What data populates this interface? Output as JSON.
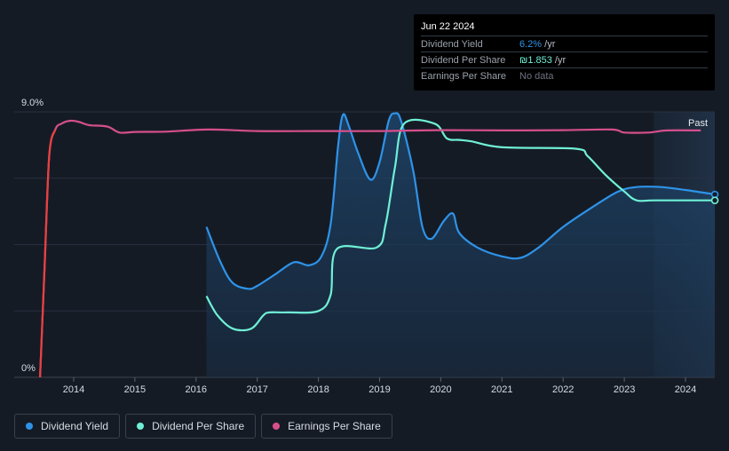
{
  "tooltip": {
    "date": "Jun 22 2024",
    "rows": [
      {
        "label": "Dividend Yield",
        "value": "6.2%",
        "unit": " /yr"
      },
      {
        "label": "Dividend Per Share",
        "value": "₪1.853",
        "unit": " /yr"
      },
      {
        "label": "Earnings Per Share",
        "value": "No data",
        "unit": ""
      }
    ]
  },
  "legend": [
    {
      "label": "Dividend Yield",
      "color": "#2e93e8"
    },
    {
      "label": "Dividend Per Share",
      "color": "#6ff0d6"
    },
    {
      "label": "Earnings Per Share",
      "color": "#d64f8c"
    }
  ],
  "chart_data": {
    "type": "line",
    "past_label": "Past",
    "y_tick_labels": [
      "9.0%",
      "0%"
    ],
    "x_ticks": [
      "2014",
      "2015",
      "2016",
      "2017",
      "2018",
      "2019",
      "2020",
      "2021",
      "2022",
      "2023",
      "2024"
    ],
    "xlim": [
      2013.0,
      2024.48
    ],
    "ylim": [
      0,
      9.0
    ],
    "forecast_start": 2023.48,
    "grid": true,
    "series": [
      {
        "name": "Dividend Yield",
        "color": "#2e93e8",
        "filled": true,
        "points": [
          [
            2016.17,
            5.1
          ],
          [
            2016.4,
            3.9
          ],
          [
            2016.6,
            3.2
          ],
          [
            2016.85,
            3.0
          ],
          [
            2017.0,
            3.1
          ],
          [
            2017.3,
            3.5
          ],
          [
            2017.6,
            3.9
          ],
          [
            2017.85,
            3.8
          ],
          [
            2018.05,
            4.1
          ],
          [
            2018.2,
            5.2
          ],
          [
            2018.32,
            7.8
          ],
          [
            2018.4,
            8.9
          ],
          [
            2018.5,
            8.5
          ],
          [
            2018.65,
            7.6
          ],
          [
            2018.85,
            6.7
          ],
          [
            2019.0,
            7.3
          ],
          [
            2019.15,
            8.7
          ],
          [
            2019.25,
            8.95
          ],
          [
            2019.35,
            8.7
          ],
          [
            2019.55,
            7.0
          ],
          [
            2019.7,
            5.1
          ],
          [
            2019.85,
            4.7
          ],
          [
            2020.05,
            5.3
          ],
          [
            2020.2,
            5.55
          ],
          [
            2020.3,
            4.9
          ],
          [
            2020.6,
            4.4
          ],
          [
            2021.0,
            4.1
          ],
          [
            2021.3,
            4.05
          ],
          [
            2021.6,
            4.4
          ],
          [
            2022.0,
            5.1
          ],
          [
            2022.5,
            5.8
          ],
          [
            2022.9,
            6.3
          ],
          [
            2023.2,
            6.45
          ],
          [
            2023.6,
            6.45
          ],
          [
            2024.0,
            6.35
          ],
          [
            2024.48,
            6.2
          ]
        ]
      },
      {
        "name": "Dividend Per Share",
        "color": "#6ff0d6",
        "filled": false,
        "points": [
          [
            2016.17,
            2.75
          ],
          [
            2016.35,
            2.1
          ],
          [
            2016.6,
            1.65
          ],
          [
            2016.9,
            1.65
          ],
          [
            2017.1,
            2.1
          ],
          [
            2017.2,
            2.2
          ],
          [
            2017.5,
            2.2
          ],
          [
            2018.0,
            2.25
          ],
          [
            2018.2,
            2.8
          ],
          [
            2018.3,
            4.35
          ],
          [
            2018.95,
            4.4
          ],
          [
            2019.1,
            5.2
          ],
          [
            2019.25,
            7.1
          ],
          [
            2019.4,
            8.6
          ],
          [
            2019.9,
            8.6
          ],
          [
            2020.1,
            8.1
          ],
          [
            2020.3,
            8.05
          ],
          [
            2020.5,
            8.0
          ],
          [
            2021.0,
            7.8
          ],
          [
            2022.2,
            7.75
          ],
          [
            2022.4,
            7.5
          ],
          [
            2022.7,
            6.85
          ],
          [
            2023.0,
            6.3
          ],
          [
            2023.2,
            6.0
          ],
          [
            2023.5,
            6.0
          ],
          [
            2024.48,
            6.0
          ]
        ]
      },
      {
        "name": "Earnings Per Share",
        "color": "#d64f8c",
        "filled": false,
        "points": [
          [
            2013.45,
            0
          ],
          [
            2013.52,
            3.5
          ],
          [
            2013.6,
            7.5
          ],
          [
            2013.7,
            8.4
          ],
          [
            2013.8,
            8.6
          ],
          [
            2013.95,
            8.7
          ],
          [
            2014.1,
            8.65
          ],
          [
            2014.25,
            8.55
          ],
          [
            2014.55,
            8.5
          ],
          [
            2014.75,
            8.3
          ],
          [
            2015.0,
            8.32
          ],
          [
            2015.5,
            8.33
          ],
          [
            2016.2,
            8.4
          ],
          [
            2017.0,
            8.35
          ],
          [
            2018.0,
            8.35
          ],
          [
            2019.0,
            8.35
          ],
          [
            2020.0,
            8.38
          ],
          [
            2021.0,
            8.37
          ],
          [
            2022.0,
            8.38
          ],
          [
            2022.8,
            8.4
          ],
          [
            2023.0,
            8.3
          ],
          [
            2023.4,
            8.3
          ],
          [
            2023.7,
            8.37
          ],
          [
            2024.25,
            8.37
          ]
        ]
      }
    ]
  }
}
